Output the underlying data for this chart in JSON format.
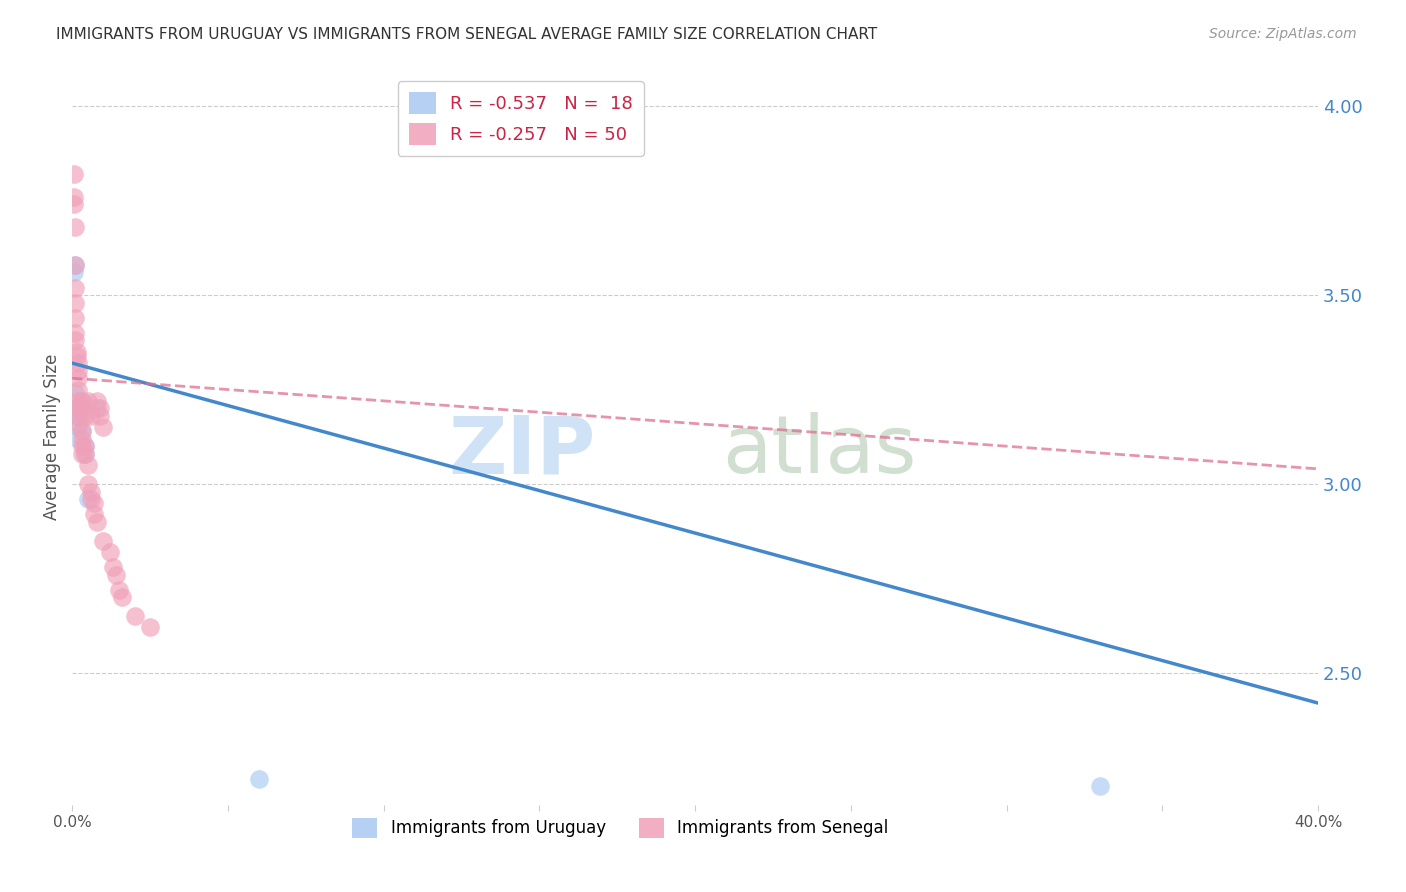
{
  "title": "IMMIGRANTS FROM URUGUAY VS IMMIGRANTS FROM SENEGAL AVERAGE FAMILY SIZE CORRELATION CHART",
  "source": "Source: ZipAtlas.com",
  "ylabel": "Average Family Size",
  "right_yticks": [
    2.5,
    3.0,
    3.5,
    4.0
  ],
  "legend_labels_bottom": [
    "Immigrants from Uruguay",
    "Immigrants from Senegal"
  ],
  "uruguay_color": "#a8c8f0",
  "senegal_color": "#f0a0b8",
  "uruguay_line_color": "#4488cc",
  "senegal_line_color": "#dd7090",
  "uruguay_points": [
    [
      0.0005,
      3.56
    ],
    [
      0.0008,
      3.58
    ],
    [
      0.001,
      3.24
    ],
    [
      0.001,
      3.2
    ],
    [
      0.002,
      3.2
    ],
    [
      0.002,
      3.18
    ],
    [
      0.002,
      3.15
    ],
    [
      0.002,
      3.12
    ],
    [
      0.003,
      3.22
    ],
    [
      0.003,
      3.2
    ],
    [
      0.003,
      3.18
    ],
    [
      0.003,
      3.14
    ],
    [
      0.004,
      3.1
    ],
    [
      0.004,
      3.08
    ],
    [
      0.005,
      2.96
    ],
    [
      0.008,
      3.2
    ],
    [
      0.06,
      2.22
    ],
    [
      0.33,
      2.2
    ]
  ],
  "senegal_points": [
    [
      0.0005,
      3.82
    ],
    [
      0.0006,
      3.76
    ],
    [
      0.0007,
      3.74
    ],
    [
      0.0008,
      3.68
    ],
    [
      0.0009,
      3.58
    ],
    [
      0.001,
      3.52
    ],
    [
      0.001,
      3.48
    ],
    [
      0.001,
      3.44
    ],
    [
      0.001,
      3.4
    ],
    [
      0.001,
      3.38
    ],
    [
      0.0015,
      3.35
    ],
    [
      0.0015,
      3.34
    ],
    [
      0.002,
      3.32
    ],
    [
      0.002,
      3.3
    ],
    [
      0.002,
      3.28
    ],
    [
      0.002,
      3.25
    ],
    [
      0.002,
      3.22
    ],
    [
      0.002,
      3.2
    ],
    [
      0.002,
      3.18
    ],
    [
      0.002,
      3.16
    ],
    [
      0.003,
      3.14
    ],
    [
      0.003,
      3.12
    ],
    [
      0.003,
      3.1
    ],
    [
      0.003,
      3.08
    ],
    [
      0.003,
      3.22
    ],
    [
      0.003,
      3.2
    ],
    [
      0.004,
      3.18
    ],
    [
      0.004,
      3.1
    ],
    [
      0.004,
      3.08
    ],
    [
      0.005,
      3.05
    ],
    [
      0.005,
      3.22
    ],
    [
      0.005,
      3.0
    ],
    [
      0.006,
      2.96
    ],
    [
      0.006,
      3.18
    ],
    [
      0.006,
      2.98
    ],
    [
      0.007,
      2.95
    ],
    [
      0.007,
      2.92
    ],
    [
      0.008,
      2.9
    ],
    [
      0.008,
      3.22
    ],
    [
      0.009,
      3.2
    ],
    [
      0.009,
      3.18
    ],
    [
      0.01,
      3.15
    ],
    [
      0.01,
      2.85
    ],
    [
      0.012,
      2.82
    ],
    [
      0.013,
      2.78
    ],
    [
      0.014,
      2.76
    ],
    [
      0.015,
      2.72
    ],
    [
      0.016,
      2.7
    ],
    [
      0.02,
      2.65
    ],
    [
      0.025,
      2.62
    ]
  ],
  "xlim": [
    0.0,
    0.4
  ],
  "ylim": [
    2.15,
    4.1
  ],
  "grid_color": "#cccccc",
  "background_color": "#ffffff",
  "title_fontsize": 11,
  "source_fontsize": 10,
  "uruguay_trendline": [
    0.0,
    3.32,
    0.4,
    2.42
  ],
  "senegal_trendline": [
    0.0,
    3.28,
    0.4,
    3.04
  ]
}
